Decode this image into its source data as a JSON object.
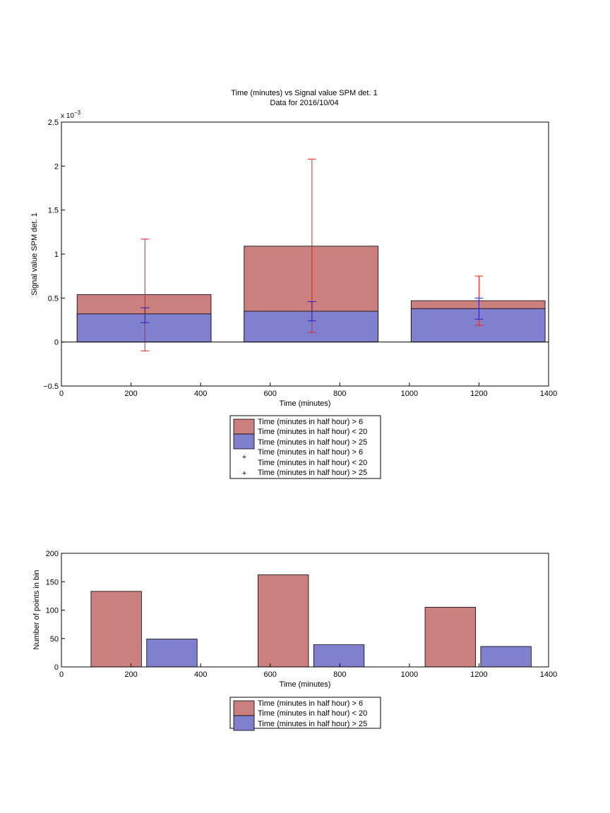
{
  "colors": {
    "red_bar": "#cb7f7e",
    "blue_bar": "#8080ce",
    "red_err": "#e02020",
    "blue_err": "#1f1fd0"
  },
  "chart_data": [
    {
      "type": "bar",
      "title": "Time (minutes) vs Signal value SPM det. 1",
      "subtitle": "Data for 2016/10/04",
      "xlabel": "Time (minutes)",
      "ylabel": "Signal value SPM det. 1",
      "exponent": "x 10",
      "exponent_power": "−3",
      "xlim": [
        0,
        1400
      ],
      "ylim": [
        -0.5,
        2.5
      ],
      "y_scale_note": "values in units of 10^-3",
      "xticks": [
        0,
        200,
        400,
        600,
        800,
        1000,
        1200,
        1400
      ],
      "yticks": [
        -0.5,
        0,
        0.5,
        1,
        1.5,
        2,
        2.5
      ],
      "bars": [
        {
          "x_start": 45,
          "x_end": 430,
          "red_value": 0.54,
          "blue_value": 0.32
        },
        {
          "x_start": 525,
          "x_end": 910,
          "red_value": 1.09,
          "blue_value": 0.35
        },
        {
          "x_start": 1005,
          "x_end": 1390,
          "red_value": 0.47,
          "blue_value": 0.38
        }
      ],
      "errorbars": [
        {
          "x": 240,
          "red_low": -0.1,
          "red_high": 1.17,
          "blue_low": 0.22,
          "blue_high": 0.39
        },
        {
          "x": 720,
          "red_low": 0.11,
          "red_high": 2.08,
          "blue_low": 0.24,
          "blue_high": 0.46
        },
        {
          "x": 1200,
          "red_low": 0.19,
          "red_high": 0.75,
          "blue_low": 0.26,
          "blue_high": 0.5
        }
      ],
      "legend": {
        "placement": "below",
        "entries": [
          "Time (minutes in half hour) > 6",
          "Time (minutes in half hour) < 20",
          "Time (minutes in half hour) > 25",
          "Time (minutes in half hour) > 6",
          "Time (minutes in half hour) < 20",
          "Time (minutes in half hour) > 25"
        ]
      }
    },
    {
      "type": "bar",
      "xlabel": "Time (minutes)",
      "ylabel": "Number of points in bin",
      "xlim": [
        0,
        1400
      ],
      "ylim": [
        0,
        200
      ],
      "xticks": [
        0,
        200,
        400,
        600,
        800,
        1000,
        1200,
        1400
      ],
      "yticks": [
        0,
        50,
        100,
        150,
        200
      ],
      "bars": [
        {
          "x_start": 85,
          "x_end": 230,
          "value": 133,
          "series": "red"
        },
        {
          "x_start": 245,
          "x_end": 390,
          "value": 49,
          "series": "blue"
        },
        {
          "x_start": 565,
          "x_end": 710,
          "value": 162,
          "series": "red"
        },
        {
          "x_start": 725,
          "x_end": 870,
          "value": 39,
          "series": "blue"
        },
        {
          "x_start": 1045,
          "x_end": 1190,
          "value": 105,
          "series": "red"
        },
        {
          "x_start": 1205,
          "x_end": 1350,
          "value": 36,
          "series": "blue"
        }
      ],
      "legend": {
        "placement": "below",
        "entries": [
          "Time (minutes in half hour) > 6",
          "Time (minutes in half hour) < 20",
          "Time (minutes in half hour) > 25"
        ]
      }
    }
  ]
}
